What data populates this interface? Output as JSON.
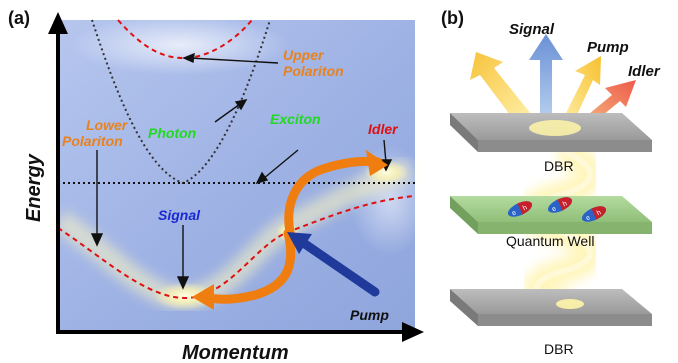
{
  "panel_a": {
    "label": "(a)",
    "axis_y": "Energy",
    "axis_x": "Momentum",
    "labels": {
      "upper_polariton_1": "Upper",
      "upper_polariton_2": "Polariton",
      "lower_polariton_1": "Lower",
      "lower_polariton_2": "Polariton",
      "photon": "Photon",
      "exciton": "Exciton",
      "idler": "Idler",
      "signal": "Signal",
      "pump": "Pump"
    }
  },
  "panel_b": {
    "label": "(b)",
    "beam_labels": {
      "signal": "Signal",
      "pump": "Pump",
      "idler": "Idler"
    },
    "layers": {
      "top": "DBR",
      "middle": "Quantum Well",
      "bottom": "DBR"
    },
    "particle_charges": [
      "e",
      "h",
      "e",
      "h",
      "e",
      "h"
    ]
  },
  "colors": {
    "orange_text": "#e8821e",
    "green_text": "#22d922",
    "idler_red": "#dd1111",
    "signal_blue": "#1a2ad0",
    "dispersion_red": "#e01010",
    "orange_arrow": "#f07d10",
    "pump_arrow": "#1f3a9a",
    "plot_bg": "#9fb4e6",
    "dbr_gray": "#a9a9a9",
    "qw_green": "#a6cf8f"
  }
}
